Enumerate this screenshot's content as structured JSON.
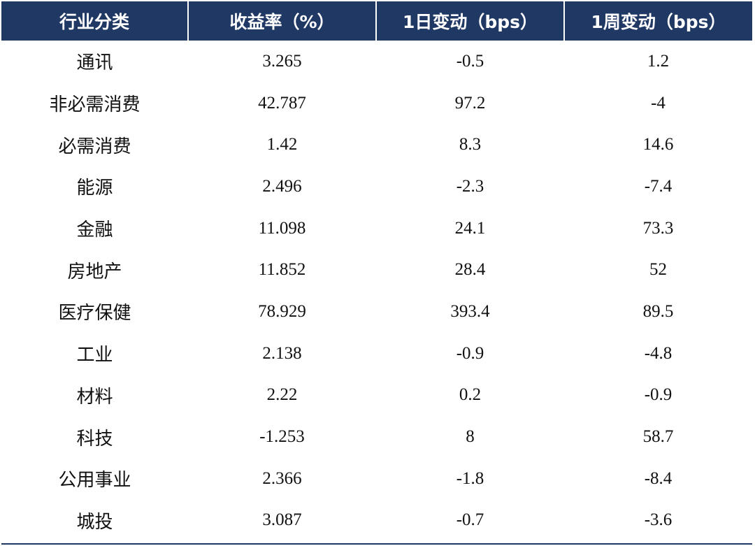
{
  "table": {
    "headers": [
      "行业分类",
      "收益率（%）",
      "1日变动（bps）",
      "1周变动（bps）"
    ],
    "rows": [
      {
        "category": "通讯",
        "yield": "3.265",
        "change_1d": "-0.5",
        "change_1w": "1.2"
      },
      {
        "category": "非必需消费",
        "yield": "42.787",
        "change_1d": "97.2",
        "change_1w": "-4"
      },
      {
        "category": "必需消费",
        "yield": "1.42",
        "change_1d": "8.3",
        "change_1w": "14.6"
      },
      {
        "category": "能源",
        "yield": "2.496",
        "change_1d": "-2.3",
        "change_1w": "-7.4"
      },
      {
        "category": "金融",
        "yield": "11.098",
        "change_1d": "24.1",
        "change_1w": "73.3"
      },
      {
        "category": "房地产",
        "yield": "11.852",
        "change_1d": "28.4",
        "change_1w": "52"
      },
      {
        "category": "医疗保健",
        "yield": "78.929",
        "change_1d": "393.4",
        "change_1w": "89.5"
      },
      {
        "category": "工业",
        "yield": "2.138",
        "change_1d": "-0.9",
        "change_1w": "-4.8"
      },
      {
        "category": "材料",
        "yield": "2.22",
        "change_1d": "0.2",
        "change_1w": "-0.9"
      },
      {
        "category": "科技",
        "yield": "-1.253",
        "change_1d": "8",
        "change_1w": "58.7"
      },
      {
        "category": "公用事业",
        "yield": "2.366",
        "change_1d": "-1.8",
        "change_1w": "-8.4"
      },
      {
        "category": "城投",
        "yield": "3.087",
        "change_1d": "-0.7",
        "change_1w": "-3.6"
      }
    ]
  },
  "colors": {
    "header_bg": "#1f3864",
    "header_text": "#ffffff",
    "body_text": "#111111"
  }
}
